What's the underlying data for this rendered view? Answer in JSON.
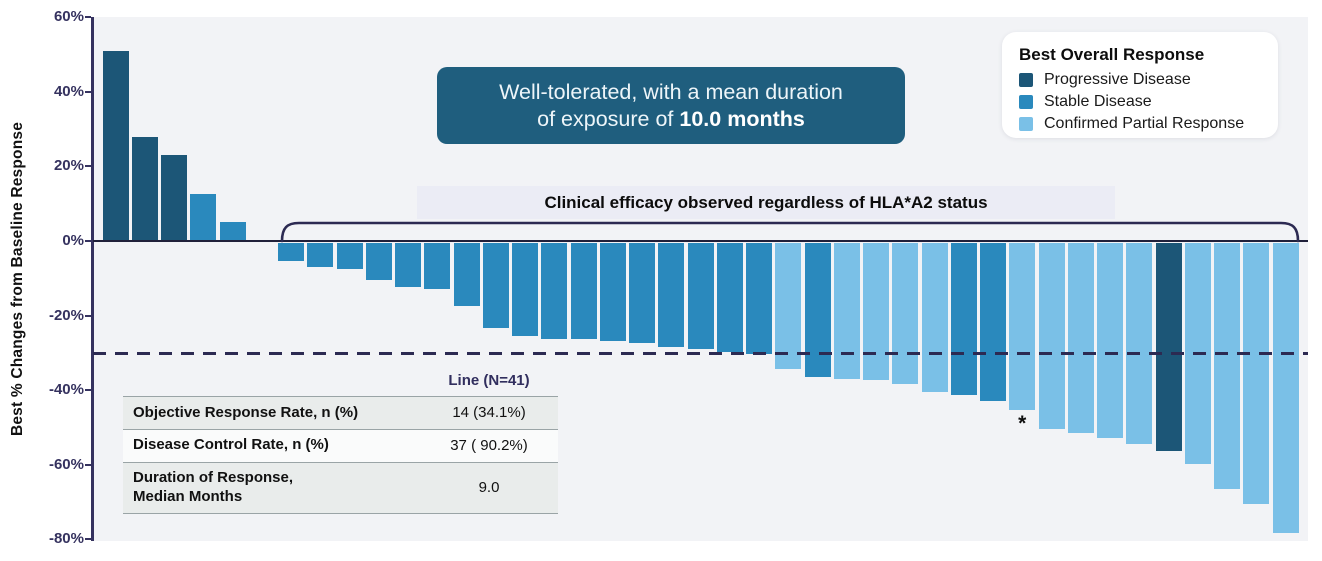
{
  "y_axis": {
    "title": "Best % Changes from Baseline Response",
    "tick_labels": [
      "60%",
      "40%",
      "20%",
      "0%",
      "-20%",
      "-40%",
      "-60%",
      "-80%"
    ],
    "tick_values": [
      60,
      40,
      20,
      0,
      -20,
      -40,
      -60,
      -80
    ]
  },
  "legend": {
    "title": "Best Overall Response",
    "items": [
      {
        "key": "PD",
        "label": "Progressive Disease",
        "color": "#1c5677"
      },
      {
        "key": "SD",
        "label": "Stable Disease",
        "color": "#2a89bd"
      },
      {
        "key": "CPR",
        "label": "Confirmed Partial Response",
        "color": "#7ac0e7"
      }
    ]
  },
  "callout": {
    "line1": "Well-tolerated, with a mean duration",
    "line2_prefix": "of exposure of ",
    "line2_bold": "10.0 months"
  },
  "annotation": {
    "text": "Clinical efficacy observed regardless of HLA*A2 status"
  },
  "table": {
    "header": "Line (N=41)",
    "rows": [
      {
        "label": "Objective Response Rate, n (%)",
        "label2": "",
        "value": "14 (34.1%)"
      },
      {
        "label": "Disease Control Rate, n (%)",
        "label2": "",
        "value": "37 ( 90.2%)"
      },
      {
        "label": "Duration of Response,",
        "label2": "Median Months",
        "value": "9.0"
      }
    ]
  },
  "chart_data": {
    "type": "bar",
    "title": "",
    "ylabel": "Best % Changes from Baseline Response",
    "ylim": [
      -80,
      60
    ],
    "grid": false,
    "legend_position": "top-right",
    "reference_line": {
      "value": -30,
      "style": "dashed"
    },
    "footnote_marker": "*",
    "asterisk_bar_index": 31,
    "n_total": 41,
    "colors": {
      "PD": "#1c5677",
      "SD": "#2a89bd",
      "CPR": "#7ac0e7"
    },
    "points": [
      {
        "value": 51,
        "response": "PD"
      },
      {
        "value": 28,
        "response": "PD"
      },
      {
        "value": 23,
        "response": "PD"
      },
      {
        "value": 12.5,
        "response": "SD"
      },
      {
        "value": 5,
        "response": "SD"
      },
      {
        "value": 0,
        "response": "SD"
      },
      {
        "value": -5,
        "response": "SD"
      },
      {
        "value": -6.5,
        "response": "SD"
      },
      {
        "value": -7,
        "response": "SD"
      },
      {
        "value": -10,
        "response": "SD"
      },
      {
        "value": -12,
        "response": "SD"
      },
      {
        "value": -12.5,
        "response": "SD"
      },
      {
        "value": -17,
        "response": "SD"
      },
      {
        "value": -23,
        "response": "SD"
      },
      {
        "value": -25,
        "response": "SD"
      },
      {
        "value": -26,
        "response": "SD"
      },
      {
        "value": -26,
        "response": "SD"
      },
      {
        "value": -26.5,
        "response": "SD"
      },
      {
        "value": -27,
        "response": "SD"
      },
      {
        "value": -28,
        "response": "SD"
      },
      {
        "value": -28.5,
        "response": "SD"
      },
      {
        "value": -29.5,
        "response": "SD"
      },
      {
        "value": -30,
        "response": "SD"
      },
      {
        "value": -34,
        "response": "CPR"
      },
      {
        "value": -36,
        "response": "SD"
      },
      {
        "value": -36.5,
        "response": "CPR"
      },
      {
        "value": -37,
        "response": "CPR"
      },
      {
        "value": -38,
        "response": "CPR"
      },
      {
        "value": -40,
        "response": "CPR"
      },
      {
        "value": -41,
        "response": "SD"
      },
      {
        "value": -42.5,
        "response": "SD"
      },
      {
        "value": -45,
        "response": "CPR"
      },
      {
        "value": -50,
        "response": "CPR"
      },
      {
        "value": -51,
        "response": "CPR"
      },
      {
        "value": -52.5,
        "response": "CPR"
      },
      {
        "value": -54,
        "response": "CPR"
      },
      {
        "value": -56,
        "response": "PD"
      },
      {
        "value": -59.5,
        "response": "CPR"
      },
      {
        "value": -66,
        "response": "CPR"
      },
      {
        "value": -70,
        "response": "CPR"
      },
      {
        "value": -78,
        "response": "CPR"
      }
    ]
  }
}
